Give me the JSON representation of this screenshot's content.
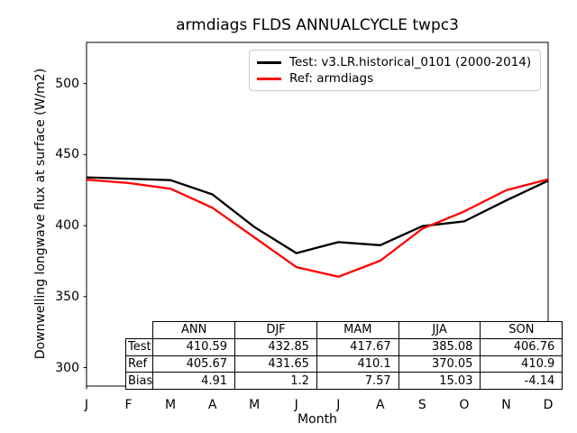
{
  "chart": {
    "title": "armdiags FLDS ANNUALCYCLE twpc3",
    "xlabel": "Month",
    "ylabel": "Downwelling longwave flux at surface (W/m2)"
  },
  "chart_data": {
    "type": "line",
    "title": "armdiags FLDS ANNUALCYCLE twpc3",
    "xlabel": "Month",
    "ylabel": "Downwelling longwave flux at surface (W/m2)",
    "x_tick_labels": [
      "J",
      "F",
      "M",
      "A",
      "M",
      "J",
      "J",
      "A",
      "S",
      "O",
      "N",
      "D"
    ],
    "y_ticks": [
      300,
      350,
      400,
      450,
      500
    ],
    "ylim": [
      287,
      529
    ],
    "grid": false,
    "legend_position": "upper right",
    "series": [
      {
        "name": "Test: v3.LR.historical_0101 (2000-2014)",
        "color": "#000000",
        "values": [
          434.0,
          433.0,
          432.0,
          422.0,
          399.0,
          380.6,
          388.4,
          386.2,
          399.6,
          403.0,
          417.7,
          431.6
        ]
      },
      {
        "name": "Ref: armdiags",
        "color": "#ff0000",
        "values": [
          432.3,
          430.0,
          426.0,
          412.6,
          391.7,
          370.8,
          364.0,
          375.3,
          397.8,
          410.0,
          424.9,
          432.6
        ]
      }
    ]
  },
  "table": {
    "col_headers": [
      "ANN",
      "DJF",
      "MAM",
      "JJA",
      "SON"
    ],
    "rows": [
      {
        "label": "Test",
        "values": [
          "410.59",
          "432.85",
          "417.67",
          "385.08",
          "406.76"
        ]
      },
      {
        "label": "Ref",
        "values": [
          "405.67",
          "431.65",
          "410.1",
          "370.05",
          "410.9"
        ]
      },
      {
        "label": "Bias",
        "values": [
          "4.91",
          "1.2",
          "7.57",
          "15.03",
          "-4.14"
        ]
      }
    ]
  }
}
